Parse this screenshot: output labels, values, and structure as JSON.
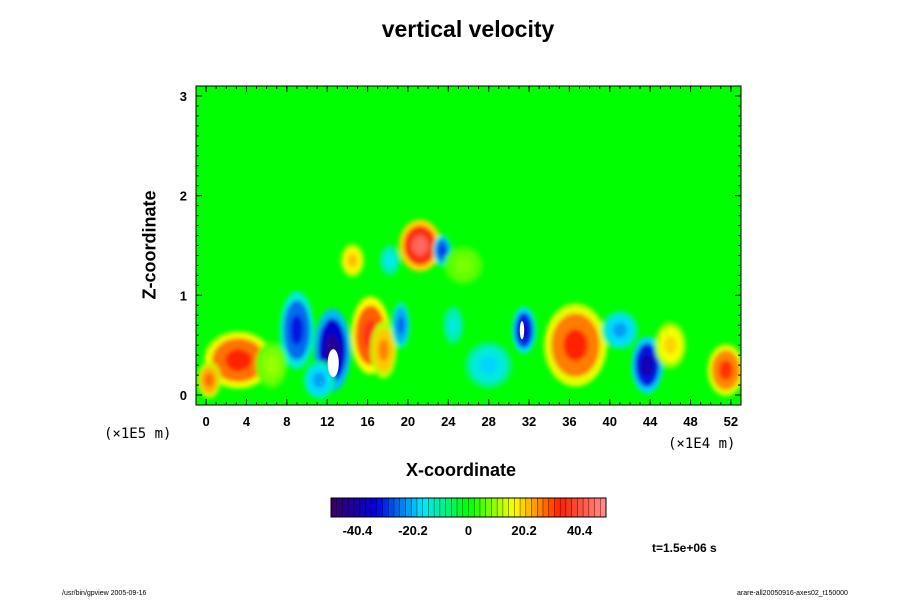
{
  "chart_data": {
    "type": "heatmap",
    "title": "vertical velocity",
    "xlabel": "X-coordinate",
    "ylabel": "Z-coordinate",
    "x_ticks": [
      "0",
      "4",
      "8",
      "12",
      "16",
      "20",
      "24",
      "28",
      "32",
      "36",
      "40",
      "44",
      "48",
      "52"
    ],
    "y_ticks": [
      "0",
      "1",
      "2",
      "3"
    ],
    "x_unit": "(×1E4 m)",
    "y_unit": "(×1E5 m)",
    "xlim": [
      -1,
      53
    ],
    "ylim": [
      -0.1,
      3.1
    ],
    "colorbar": {
      "ticks": [
        "-40.4",
        "-20.2",
        "0",
        "20.2",
        "40.4"
      ],
      "tick_values": [
        -40.4,
        -20.2,
        0,
        20.2,
        40.4
      ],
      "range": [
        -50,
        50
      ],
      "stops": [
        "#3a0060",
        "#0000e0",
        "#00e8ff",
        "#00ff00",
        "#ffff00",
        "#ff2000",
        "#ff9090"
      ]
    },
    "background_value": 0,
    "features": [
      {
        "x": 3.2,
        "z": 0.35,
        "w": 2.6,
        "h": 0.22,
        "v": 34
      },
      {
        "x": 0.3,
        "z": 0.15,
        "w": 0.9,
        "h": 0.14,
        "v": 28
      },
      {
        "x": 9.0,
        "z": 0.65,
        "w": 1.3,
        "h": 0.3,
        "v": -32
      },
      {
        "x": 12.5,
        "z": 0.45,
        "w": 1.4,
        "h": 0.32,
        "v": -44
      },
      {
        "x": 11.2,
        "z": 0.15,
        "w": 1.2,
        "h": 0.15,
        "v": -22
      },
      {
        "x": 16.3,
        "z": 0.6,
        "w": 1.5,
        "h": 0.3,
        "v": 36
      },
      {
        "x": 17.6,
        "z": 0.45,
        "w": 1.0,
        "h": 0.22,
        "v": 26
      },
      {
        "x": 19.3,
        "z": 0.7,
        "w": 0.7,
        "h": 0.18,
        "v": -26
      },
      {
        "x": 21.2,
        "z": 1.5,
        "w": 1.6,
        "h": 0.2,
        "v": 44
      },
      {
        "x": 23.4,
        "z": 1.45,
        "w": 0.7,
        "h": 0.12,
        "v": -30
      },
      {
        "x": 14.5,
        "z": 1.35,
        "w": 0.9,
        "h": 0.13,
        "v": 22
      },
      {
        "x": 18.2,
        "z": 1.35,
        "w": 0.8,
        "h": 0.12,
        "v": -16
      },
      {
        "x": 24.5,
        "z": 0.7,
        "w": 0.8,
        "h": 0.15,
        "v": -15
      },
      {
        "x": 28.0,
        "z": 0.3,
        "w": 1.8,
        "h": 0.18,
        "v": -18
      },
      {
        "x": 31.5,
        "z": 0.65,
        "w": 0.9,
        "h": 0.18,
        "v": -38
      },
      {
        "x": 36.6,
        "z": 0.5,
        "w": 2.4,
        "h": 0.32,
        "v": 33
      },
      {
        "x": 41.0,
        "z": 0.65,
        "w": 1.4,
        "h": 0.15,
        "v": -22
      },
      {
        "x": 43.7,
        "z": 0.3,
        "w": 1.2,
        "h": 0.22,
        "v": -40
      },
      {
        "x": 46.0,
        "z": 0.5,
        "w": 1.2,
        "h": 0.18,
        "v": 20
      },
      {
        "x": 51.5,
        "z": 0.25,
        "w": 1.4,
        "h": 0.2,
        "v": 32
      },
      {
        "x": 6.5,
        "z": 0.3,
        "w": 1.2,
        "h": 0.18,
        "v": 10
      },
      {
        "x": 25.5,
        "z": 1.3,
        "w": 1.5,
        "h": 0.15,
        "v": 8
      }
    ],
    "clipped_regions": [
      {
        "x": 12.6,
        "z": 0.32,
        "w": 0.55,
        "h": 0.14
      },
      {
        "x": 31.3,
        "z": 0.65,
        "w": 0.22,
        "h": 0.09
      }
    ],
    "time_label": "t=1.5e+06 s"
  },
  "footer": {
    "left": "/usr/bin/gpview 2005-09-16",
    "right": "arare-all20050916-axes02_t150000"
  }
}
